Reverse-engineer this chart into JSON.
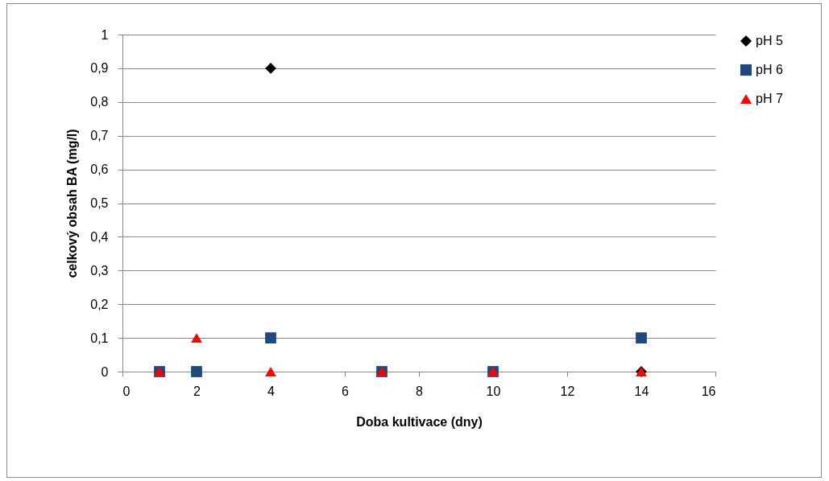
{
  "chart_data": {
    "type": "scatter",
    "xlabel": "Doba kultivace (dny)",
    "ylabel": "celkový obsah BA (mg/l)",
    "xlim": [
      0,
      16
    ],
    "xticks": [
      0,
      2,
      4,
      6,
      8,
      10,
      12,
      14,
      16
    ],
    "ylim": [
      0,
      1
    ],
    "yticks": [
      {
        "value": 0,
        "label": "0"
      },
      {
        "value": 0.1,
        "label": "0,1"
      },
      {
        "value": 0.2,
        "label": "0,2"
      },
      {
        "value": 0.3,
        "label": "0,3"
      },
      {
        "value": 0.4,
        "label": "0,4"
      },
      {
        "value": 0.5,
        "label": "0,5"
      },
      {
        "value": 0.6,
        "label": "0,6"
      },
      {
        "value": 0.7,
        "label": "0,7"
      },
      {
        "value": 0.8,
        "label": "0,8"
      },
      {
        "value": 0.9,
        "label": "0,9"
      },
      {
        "value": 1,
        "label": "1"
      }
    ],
    "grid": "y",
    "legend": "right",
    "series": [
      {
        "name": "pH 5",
        "color": "#000000",
        "marker": "diamond",
        "x": [
          1,
          2,
          4,
          7,
          10,
          14
        ],
        "values": [
          0,
          0,
          0.9,
          0,
          0,
          0
        ]
      },
      {
        "name": "pH 6",
        "color": "#1f497d",
        "marker": "square",
        "x": [
          1,
          2,
          4,
          7,
          10,
          14
        ],
        "values": [
          0,
          0,
          0.1,
          0,
          0,
          0.1
        ]
      },
      {
        "name": "pH 7",
        "color": "#ff0000",
        "marker": "triangle",
        "x": [
          1,
          2,
          4,
          7,
          10,
          14
        ],
        "values": [
          0,
          0.1,
          0,
          0,
          0,
          0
        ]
      }
    ]
  }
}
